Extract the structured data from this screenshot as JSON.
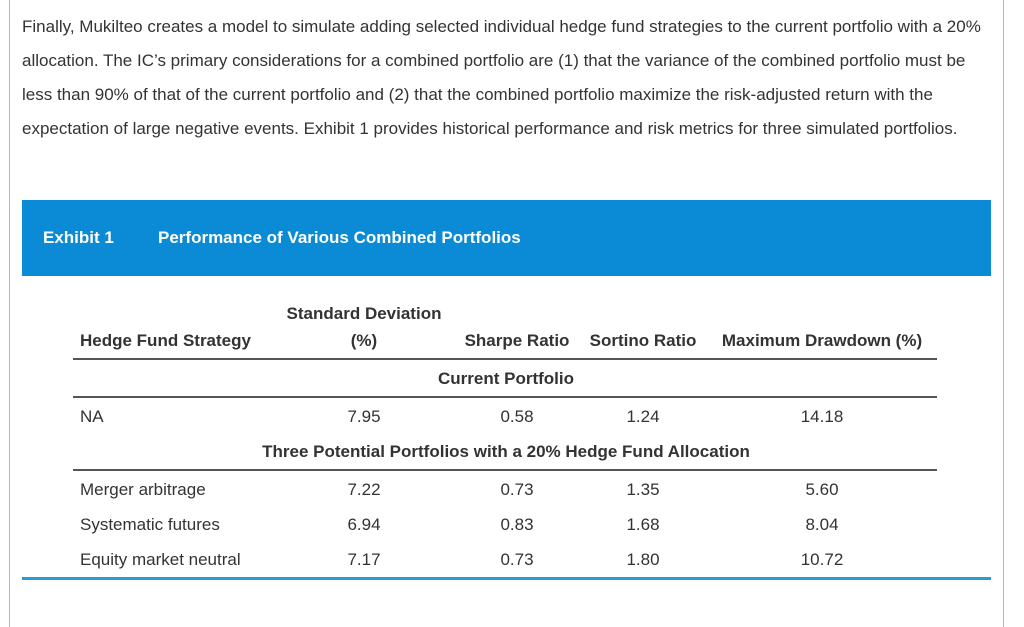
{
  "paragraph": "Finally, Mukilteo creates a model to simulate adding selected individual hedge fund strategies to the current portfolio with a 20% allocation. The IC’s primary considerations for a combined portfolio are (1) that the variance of the combined portfolio must be less than 90% of that of the current portfolio and (2) that the combined portfolio maximize the risk-adjusted return with the expectation of large negative events. Exhibit 1 provides historical performance and risk metrics for three simulated portfolios.",
  "exhibit": {
    "label": "Exhibit 1",
    "title": "Performance of Various Combined Portfolios"
  },
  "table": {
    "headers": {
      "strategy": "Hedge Fund Strategy",
      "std_line1": "Standard Deviation",
      "std_line2": "(%)",
      "sharpe": "Sharpe Ratio",
      "sortino": "Sortino Ratio",
      "mdd": "Maximum Drawdown (%)"
    },
    "section1": "Current Portfolio",
    "current": {
      "strategy": "NA",
      "std": "7.95",
      "sharpe": "0.58",
      "sortino": "1.24",
      "mdd": "14.18"
    },
    "section2": "Three Potential Portfolios with a 20% Hedge Fund Allocation",
    "rows": [
      {
        "strategy": "Merger arbitrage",
        "std": "7.22",
        "sharpe": "0.73",
        "sortino": "1.35",
        "mdd": "5.60"
      },
      {
        "strategy": "Systematic futures",
        "std": "6.94",
        "sharpe": "0.83",
        "sortino": "1.68",
        "mdd": "8.04"
      },
      {
        "strategy": "Equity market neutral",
        "std": "7.17",
        "sharpe": "0.73",
        "sortino": "1.80",
        "mdd": "10.72"
      }
    ]
  }
}
